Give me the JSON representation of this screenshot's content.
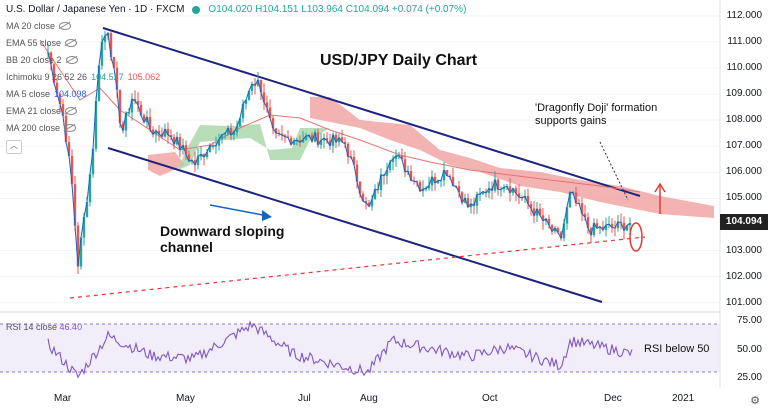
{
  "header": {
    "symbol": "U.S. Dollar / Japanese Yen · 1D · FXCM",
    "ohlc": "O104.020 H104.151 L103.964 C104.094 +0.074 (+0.07%)"
  },
  "indicators": [
    {
      "name": "MA 20 close",
      "value": ""
    },
    {
      "name": "EMA 55 close",
      "value": ""
    },
    {
      "name": "BB 20 close 2",
      "value": ""
    },
    {
      "name": "Ichimoku 9 26 52 26",
      "value": "104.527",
      "value2": "105.062"
    },
    {
      "name": "MA 5 close",
      "value": "104.098"
    },
    {
      "name": "EMA 21 close",
      "value": ""
    },
    {
      "name": "MA 200 close",
      "value": ""
    }
  ],
  "collapse_icon": "chevron-up-icon",
  "price_axis": [
    "112.000",
    "111.000",
    "110.000",
    "109.000",
    "108.000",
    "107.000",
    "106.000",
    "105.000",
    "103.000",
    "102.000",
    "101.000"
  ],
  "last_price": "104.094",
  "rsi_axis": [
    "75.00",
    "50.00",
    "25.00"
  ],
  "date_axis": [
    "Mar",
    "May",
    "Jul",
    "Aug",
    "Oct",
    "Dec",
    "2021"
  ],
  "annotations": {
    "title": "USD/JPY Daily Chart",
    "doji_line1": "'Dragonfly Doji' formation",
    "doji_line2": "supports gains",
    "channel_line1": "Downward sloping",
    "channel_line2": "channel",
    "rsi_note": "RSI below 50"
  },
  "rsi": {
    "name": "RSI 14 close",
    "value": "46.40"
  },
  "colors": {
    "up": "#26a69a",
    "down": "#ef5350",
    "channel": "#1a237e",
    "cloud_red": "#ef9a9a",
    "cloud_green": "#a5d6a7",
    "rsi": "#7e57c2"
  },
  "chart_data": {
    "type": "candlestick",
    "price_range": [
      100.8,
      112.3
    ],
    "close_path": [
      [
        "Feb-24",
        110.6
      ],
      [
        "Mar-02",
        108.0
      ],
      [
        "Mar-06",
        105.5
      ],
      [
        "Mar-09",
        102.5
      ],
      [
        "Mar-16",
        106.5
      ],
      [
        "Mar-20",
        110.8
      ],
      [
        "Mar-24",
        111.5
      ],
      [
        "Mar-31",
        107.5
      ],
      [
        "Apr-06",
        108.9
      ],
      [
        "Apr-15",
        107.6
      ],
      [
        "Apr-24",
        107.5
      ],
      [
        "May-06",
        106.3
      ],
      [
        "May-15",
        107.2
      ],
      [
        "May-26",
        107.6
      ],
      [
        "Jun-04",
        109.5
      ],
      [
        "Jun-08",
        109.4
      ],
      [
        "Jun-15",
        107.3
      ],
      [
        "Jun-25",
        107.3
      ],
      [
        "Jul-08",
        107.3
      ],
      [
        "Jul-20",
        107.1
      ],
      [
        "Jul-31",
        104.5
      ],
      [
        "Aug-13",
        106.8
      ],
      [
        "Aug-28",
        105.4
      ],
      [
        "Sep-10",
        106.1
      ],
      [
        "Sep-21",
        104.6
      ],
      [
        "Oct-01",
        105.5
      ],
      [
        "Oct-09",
        105.6
      ],
      [
        "Oct-21",
        104.7
      ],
      [
        "Nov-06",
        103.4
      ],
      [
        "Nov-11",
        105.2
      ],
      [
        "Nov-20",
        103.8
      ],
      [
        "Dec-03",
        103.9
      ],
      [
        "Dec-10",
        104.1
      ]
    ],
    "rsi_path": [
      [
        "Feb-24",
        55
      ],
      [
        "Mar-09",
        26
      ],
      [
        "Mar-24",
        62
      ],
      [
        "Apr-15",
        45
      ],
      [
        "May-06",
        42
      ],
      [
        "Jun-04",
        72
      ],
      [
        "Jun-25",
        46
      ],
      [
        "Jul-31",
        30
      ],
      [
        "Aug-13",
        58
      ],
      [
        "Sep-21",
        44
      ],
      [
        "Oct-09",
        52
      ],
      [
        "Nov-06",
        36
      ],
      [
        "Nov-11",
        58
      ],
      [
        "Dec-10",
        46.4
      ]
    ],
    "rsi_range": [
      18,
      78
    ]
  }
}
